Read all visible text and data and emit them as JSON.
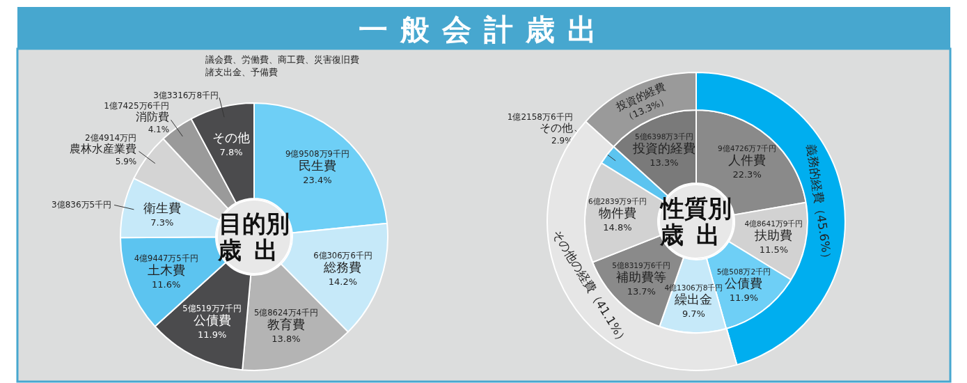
{
  "chart_data": [
    {
      "type": "donut",
      "title": "一般会計歳出",
      "subtitle": "目的別歳出",
      "categories": [
        "民生費",
        "総務費",
        "教育費",
        "公債費",
        "土木費",
        "衛生費",
        "農林水産業費",
        "消防費",
        "その他"
      ],
      "values": [
        23.4,
        14.2,
        13.8,
        11.9,
        11.6,
        7.3,
        5.9,
        4.1,
        7.8
      ],
      "value_labels": [
        "23.4%",
        "14.2%",
        "13.8%",
        "11.9%",
        "11.6%",
        "7.3%",
        "5.9%",
        "4.1%",
        "7.8%"
      ],
      "colors": [
        "#6ecff6",
        "#c6e9f9",
        "#b4b4b4",
        "#4b4b4d",
        "#5cc4f0",
        "#c6e9f9",
        "#d4d4d4",
        "#9a9a9a",
        "#4b4b4d"
      ],
      "annotations": [
        "議会費、労働費、商工費、災害復旧費",
        "諸支出金、予備費",
        {
          "text": "9億9508万9千円",
          "x": "民生費"
        },
        {
          "text": "6億306万6千円",
          "x": "総務費"
        },
        {
          "text": "5億8624万4千円",
          "x": "教育費"
        },
        {
          "text": "5億519万7千円",
          "x": "公債費"
        },
        {
          "text": "4億9447万5千円",
          "x": "土木費"
        },
        {
          "text": "3億836万5千円",
          "x": "衛生費"
        },
        {
          "text": "2億4914万円",
          "x": "農林水産業費"
        },
        {
          "text": "1億7425万6千円",
          "x": "消防費"
        },
        {
          "text": "3億3316万8千円",
          "x": "その他"
        }
      ]
    },
    {
      "type": "donut",
      "subtitle": "性質別歳出",
      "categories": [
        "人件費",
        "扶助費",
        "公債費",
        "繰出金",
        "補助費等",
        "物件費",
        "その他",
        "投資的経費"
      ],
      "values": [
        22.3,
        11.5,
        11.9,
        9.7,
        13.7,
        14.8,
        2.9,
        13.3
      ],
      "value_labels": [
        "22.3%",
        "11.5%",
        "11.9%",
        "9.7%",
        "13.7%",
        "14.8%",
        "2.9%",
        "13.3%"
      ],
      "colors": [
        "#8a8a8a",
        "#d2d2d2",
        "#6ecff6",
        "#c6e9f9",
        "#8a8a8a",
        "#d2d2d2",
        "#5cc4f0",
        "#7a7a7a"
      ],
      "annotations": [
        {
          "text": "9億4726万7千円",
          "x": "人件費"
        },
        {
          "text": "4億8641万9千円",
          "x": "扶助費"
        },
        {
          "text": "5億508万2千円",
          "x": "公債費"
        },
        {
          "text": "4億1306万8千円",
          "x": "繰出金"
        },
        {
          "text": "5億8319万6千円",
          "x": "補助費等"
        },
        {
          "text": "6億2839万9千円",
          "x": "物件費"
        },
        {
          "text": "1億2158万6千円",
          "x": "その他"
        },
        {
          "text": "5億6398万3千円",
          "x": "投資的経費"
        }
      ]
    },
    {
      "type": "donut",
      "categories": [
        "義務的経費",
        "その他の経費",
        "投資的経費"
      ],
      "values": [
        45.6,
        41.1,
        13.3
      ],
      "value_labels": [
        "（45.6%）",
        "（41.1%）",
        "（13.3%）"
      ],
      "colors": [
        "#00aeef",
        "#e6e6e6",
        "#9a9a9a"
      ]
    }
  ]
}
